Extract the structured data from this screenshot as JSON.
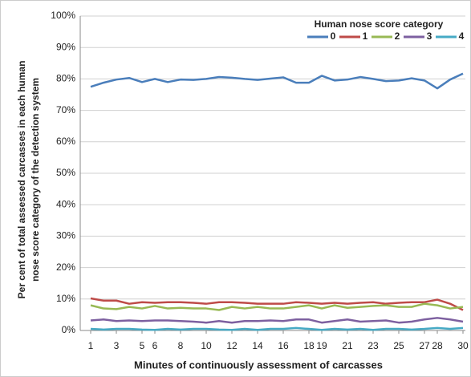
{
  "chart_data": {
    "type": "line",
    "y_label": [
      "Per cent of total assessed carcasses in each human",
      "nose score category of the detection system"
    ],
    "x_label": "Minutes of continuously assessment of carcasses",
    "legend_title": "Human nose score category",
    "legend_position": "top-right",
    "grid": true,
    "x": [
      1,
      2,
      3,
      4,
      5,
      6,
      7,
      8,
      9,
      10,
      11,
      12,
      13,
      14,
      15,
      16,
      17,
      18,
      19,
      20,
      21,
      22,
      23,
      24,
      25,
      26,
      27,
      28,
      29,
      30
    ],
    "xlim": [
      1,
      30
    ],
    "xticks": [
      1,
      3,
      5,
      6,
      8,
      10,
      12,
      14,
      16,
      18,
      19,
      21,
      23,
      25,
      27,
      28,
      30
    ],
    "ylim": [
      0,
      100
    ],
    "yticks": [
      {
        "value": 0,
        "label": "0%"
      },
      {
        "value": 10,
        "label": "10%"
      },
      {
        "value": 20,
        "label": "20%"
      },
      {
        "value": 30,
        "label": "30%"
      },
      {
        "value": 40,
        "label": "40%"
      },
      {
        "value": 50,
        "label": "50%"
      },
      {
        "value": 60,
        "label": "60%"
      },
      {
        "value": 70,
        "label": "70%"
      },
      {
        "value": 80,
        "label": "80%"
      },
      {
        "value": 90,
        "label": "90%"
      },
      {
        "value": 100,
        "label": "100%"
      }
    ],
    "series": [
      {
        "name": "0",
        "color": "#4a7ebb",
        "values": [
          77.5,
          78.8,
          79.8,
          80.3,
          79,
          80,
          79,
          79.8,
          79.7,
          80,
          80.6,
          80.4,
          80,
          79.7,
          80.1,
          80.5,
          78.8,
          78.8,
          81,
          79.5,
          79.8,
          80.6,
          80,
          79.3,
          79.5,
          80.2,
          79.5,
          77,
          79.8,
          81.7
        ]
      },
      {
        "name": "1",
        "color": "#be4b48",
        "values": [
          10.2,
          9.5,
          9.5,
          8.5,
          9,
          8.8,
          9,
          9,
          8.8,
          8.5,
          9,
          9,
          8.8,
          8.5,
          8.5,
          8.5,
          9,
          8.8,
          8.5,
          8.8,
          8.5,
          8.8,
          9,
          8.5,
          8.8,
          9,
          9,
          9.8,
          8.5,
          6.5
        ]
      },
      {
        "name": "2",
        "color": "#98b954",
        "values": [
          8,
          7,
          6.8,
          7.5,
          7,
          7.8,
          7,
          7.2,
          7,
          7,
          6.5,
          7.5,
          7,
          7.5,
          7,
          7,
          7.5,
          8,
          7,
          8,
          7.2,
          7.5,
          7.8,
          8,
          7.5,
          7.5,
          8.5,
          8,
          7,
          7.5
        ]
      },
      {
        "name": "3",
        "color": "#7d60a0",
        "values": [
          3.2,
          3.5,
          3,
          3.2,
          3,
          3.2,
          3.2,
          3,
          2.8,
          2.5,
          3,
          2.5,
          3,
          3,
          3.2,
          3,
          3.5,
          3.5,
          2.5,
          3,
          3.5,
          2.8,
          3,
          3.2,
          2.5,
          2.8,
          3.5,
          4,
          3.5,
          2.8
        ]
      },
      {
        "name": "4",
        "color": "#46aac5",
        "values": [
          0.5,
          0.3,
          0.5,
          0.5,
          0.3,
          0.2,
          0.5,
          0.3,
          0.5,
          0.5,
          0.3,
          0.2,
          0.5,
          0.2,
          0.5,
          0.5,
          0.8,
          0.5,
          0.2,
          0.5,
          0.3,
          0.5,
          0.2,
          0.5,
          0.5,
          0.3,
          0.5,
          0.8,
          0.5,
          0.8
        ]
      }
    ]
  }
}
